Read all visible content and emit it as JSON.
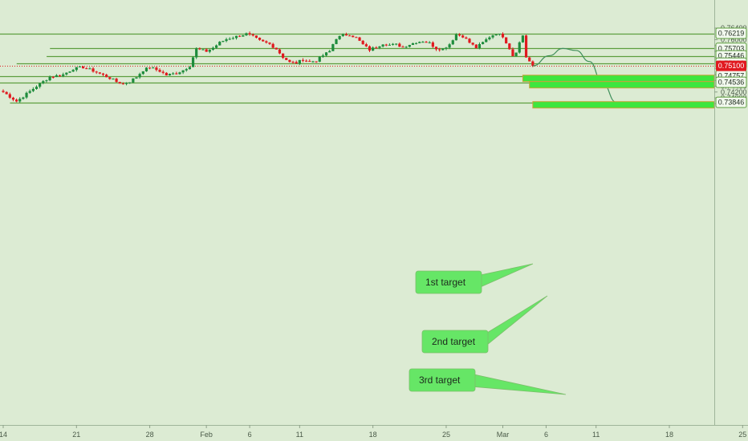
{
  "chart_data": {
    "type": "candlestick",
    "colors": {
      "background": "#dcebd3",
      "up": "#1e8c3c",
      "down": "#e0191f",
      "level_line": "#5d9e3f",
      "current_price": "#e0191f",
      "target_zone": "#3ee63e",
      "callout": "#66e666",
      "projection": "#3f8f5a"
    },
    "y_axis": {
      "range": [
        0.7375,
        0.7653
      ],
      "ticks": [
        "0.76400",
        "0.76000",
        "0.75800",
        "0.75600",
        "0.75400",
        "0.75000",
        "0.74800",
        "0.74600",
        "0.74400",
        "0.74200",
        "0.74000",
        "0.73800"
      ]
    },
    "x_axis": {
      "ticks": [
        {
          "label": "14",
          "bar": 0
        },
        {
          "label": "21",
          "bar": 22
        },
        {
          "label": "28",
          "bar": 44
        },
        {
          "label": "Feb",
          "bar": 61
        },
        {
          "label": "6",
          "bar": 74
        },
        {
          "label": "11",
          "bar": 89
        },
        {
          "label": "18",
          "bar": 111
        },
        {
          "label": "25",
          "bar": 133
        },
        {
          "label": "Mar",
          "bar": 150
        },
        {
          "label": "6",
          "bar": 163
        },
        {
          "label": "11",
          "bar": 178
        },
        {
          "label": "18",
          "bar": 200
        },
        {
          "label": "25",
          "bar": 222
        }
      ]
    },
    "horizontal_levels": [
      {
        "value": 0.76219,
        "label": "0.76219",
        "from_bar": 0
      },
      {
        "value": 0.75703,
        "label": "0.75703",
        "from_bar": 15
      },
      {
        "value": 0.75446,
        "label": "0.75446",
        "from_bar": 14
      },
      {
        "value": 0.75192,
        "label": "0.75192",
        "from_bar": 5
      },
      {
        "value": 0.74757,
        "label": "0.74757",
        "from_bar": 0
      },
      {
        "value": 0.74536,
        "label": "0.74536",
        "from_bar": 0
      },
      {
        "value": 0.73846,
        "label": "0.73846",
        "from_bar": 3
      }
    ],
    "current_price": {
      "value": 0.751,
      "label": "0.75100"
    },
    "targets": [
      {
        "name": "1st target",
        "value": 0.74757,
        "zone": [
          0.74735,
          0.7478
        ],
        "from_bar": 156
      },
      {
        "name": "2nd target",
        "value": 0.74536,
        "zone": [
          0.74515,
          0.7456
        ],
        "from_bar": 158
      },
      {
        "name": "3rd target",
        "value": 0.73846,
        "zone": [
          0.73825,
          0.7387
        ],
        "from_bar": 159
      }
    ],
    "projection_path": [
      {
        "bar": 159,
        "price": 0.751
      },
      {
        "bar": 164,
        "price": 0.7545
      },
      {
        "bar": 168,
        "price": 0.757
      },
      {
        "bar": 172,
        "price": 0.7563
      },
      {
        "bar": 176,
        "price": 0.7525
      },
      {
        "bar": 180,
        "price": 0.745
      },
      {
        "bar": 184,
        "price": 0.7385
      }
    ],
    "price_anchors": [
      [
        0,
        0.742
      ],
      [
        4,
        0.7388
      ],
      [
        6,
        0.7405
      ],
      [
        10,
        0.744
      ],
      [
        14,
        0.7472
      ],
      [
        18,
        0.748
      ],
      [
        21,
        0.75
      ],
      [
        24,
        0.7505
      ],
      [
        27,
        0.7493
      ],
      [
        30,
        0.7478
      ],
      [
        32,
        0.7468
      ],
      [
        34,
        0.7455
      ],
      [
        36,
        0.7448
      ],
      [
        38,
        0.7456
      ],
      [
        40,
        0.7472
      ],
      [
        42,
        0.7495
      ],
      [
        44,
        0.7505
      ],
      [
        47,
        0.7492
      ],
      [
        49,
        0.7478
      ],
      [
        52,
        0.7485
      ],
      [
        54,
        0.7495
      ],
      [
        56,
        0.751
      ],
      [
        57,
        0.754
      ],
      [
        58,
        0.7568
      ],
      [
        61,
        0.756
      ],
      [
        63,
        0.7572
      ],
      [
        65,
        0.759
      ],
      [
        67,
        0.7602
      ],
      [
        70,
        0.7611
      ],
      [
        73,
        0.762
      ],
      [
        75,
        0.761
      ],
      [
        77,
        0.7596
      ],
      [
        80,
        0.7585
      ],
      [
        82,
        0.7568
      ],
      [
        84,
        0.754
      ],
      [
        86,
        0.7522
      ],
      [
        88,
        0.752
      ],
      [
        90,
        0.7532
      ],
      [
        92,
        0.7524
      ],
      [
        94,
        0.7528
      ],
      [
        96,
        0.7546
      ],
      [
        98,
        0.756
      ],
      [
        99,
        0.7585
      ],
      [
        100,
        0.7605
      ],
      [
        102,
        0.7615
      ],
      [
        104,
        0.7618
      ],
      [
        106,
        0.7606
      ],
      [
        108,
        0.7583
      ],
      [
        110,
        0.7565
      ],
      [
        112,
        0.7575
      ],
      [
        114,
        0.7587
      ],
      [
        116,
        0.7582
      ],
      [
        118,
        0.7583
      ],
      [
        120,
        0.7575
      ],
      [
        122,
        0.7584
      ],
      [
        124,
        0.7592
      ],
      [
        126,
        0.7595
      ],
      [
        128,
        0.7588
      ],
      [
        130,
        0.757
      ],
      [
        132,
        0.7568
      ],
      [
        134,
        0.7585
      ],
      [
        136,
        0.7618
      ],
      [
        138,
        0.7612
      ],
      [
        140,
        0.759
      ],
      [
        142,
        0.7572
      ],
      [
        144,
        0.759
      ],
      [
        146,
        0.761
      ],
      [
        148,
        0.7622
      ],
      [
        150,
        0.7612
      ],
      [
        152,
        0.757
      ],
      [
        153,
        0.7545
      ],
      [
        154,
        0.756
      ],
      [
        155,
        0.759
      ],
      [
        156,
        0.7615
      ],
      [
        157,
        0.754
      ],
      [
        158,
        0.7525
      ],
      [
        159,
        0.751
      ]
    ]
  }
}
